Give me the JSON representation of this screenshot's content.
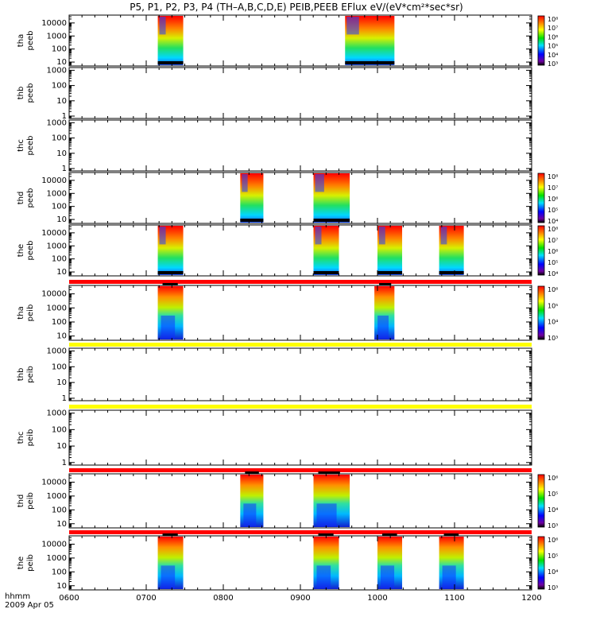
{
  "title": "P5, P1, P2, P3, P4 (TH–A,B,C,D,E) PEIB,PEEB EFlux eV/(eV*cm²*sec*sr)",
  "x_label_prefix": "hhmm",
  "date_label": "2009 Apr 05",
  "chart_data": {
    "type": "heatmap",
    "xlim": [
      "0600",
      "1200"
    ],
    "x_ticks": [
      "0600",
      "0700",
      "0800",
      "0900",
      "1000",
      "1100",
      "1200"
    ],
    "y_scale": "log",
    "colormap": "rainbow (purple-blue-cyan-green-yellow-red)",
    "panels": [
      {
        "probe": "tha",
        "product": "peeb",
        "y_ticks": [
          "10000",
          "1000",
          "100",
          "10"
        ],
        "ylim": [
          5,
          40000
        ],
        "spectrogram_blocks": [
          {
            "start": "0715",
            "end": "0748"
          },
          {
            "start": "0958",
            "end": "1022"
          }
        ],
        "colorbar": {
          "ticks": [
            "10⁸",
            "10⁷",
            "10⁶",
            "10⁵",
            "10⁴",
            "10³"
          ]
        },
        "quality_bar_above": null
      },
      {
        "probe": "thb",
        "product": "peeb",
        "y_ticks": [
          "1000",
          "100",
          "10",
          "1"
        ],
        "ylim": [
          0.7,
          1500
        ],
        "spectrogram_blocks": [],
        "colorbar": null,
        "quality_bar_above": null
      },
      {
        "probe": "thc",
        "product": "peeb",
        "y_ticks": [
          "1000",
          "100",
          "10",
          "1"
        ],
        "ylim": [
          0.7,
          1500
        ],
        "spectrogram_blocks": [],
        "colorbar": null,
        "quality_bar_above": null
      },
      {
        "probe": "thd",
        "product": "peeb",
        "y_ticks": [
          "10000",
          "1000",
          "100",
          "10"
        ],
        "ylim": [
          5,
          40000
        ],
        "spectrogram_blocks": [
          {
            "start": "0822",
            "end": "0852"
          },
          {
            "start": "0917",
            "end": "0964"
          }
        ],
        "colorbar": {
          "ticks": [
            "10⁸",
            "10⁷",
            "10⁶",
            "10⁵",
            "10⁴"
          ]
        },
        "quality_bar_above": null
      },
      {
        "probe": "the",
        "product": "peeb",
        "y_ticks": [
          "10000",
          "1000",
          "100",
          "10"
        ],
        "ylim": [
          5,
          40000
        ],
        "spectrogram_blocks": [
          {
            "start": "0715",
            "end": "0748"
          },
          {
            "start": "0917",
            "end": "0950"
          },
          {
            "start": "1000",
            "end": "1032"
          },
          {
            "start": "1080",
            "end": "1112"
          }
        ],
        "colorbar": {
          "ticks": [
            "10⁸",
            "10⁷",
            "10⁶",
            "10⁵",
            "10⁴"
          ]
        },
        "quality_bar_above": null
      },
      {
        "probe": "tha",
        "product": "peib",
        "y_ticks": [
          "10000",
          "1000",
          "100",
          "10"
        ],
        "ylim": [
          5,
          40000
        ],
        "spectrogram_blocks": [
          {
            "start": "0715",
            "end": "0748"
          },
          {
            "start": "0996",
            "end": "1022"
          }
        ],
        "colorbar": {
          "ticks": [
            "10⁶",
            "10⁵",
            "10⁴",
            "10³"
          ]
        },
        "quality_bar_above": "#ff0000"
      },
      {
        "probe": "thb",
        "product": "peib",
        "y_ticks": [
          "1000",
          "100",
          "10",
          "1"
        ],
        "ylim": [
          0.7,
          1500
        ],
        "spectrogram_blocks": [],
        "colorbar": null,
        "quality_bar_above": "#ffff00"
      },
      {
        "probe": "thc",
        "product": "peib",
        "y_ticks": [
          "1000",
          "100",
          "10",
          "1"
        ],
        "ylim": [
          0.7,
          1500
        ],
        "spectrogram_blocks": [],
        "colorbar": null,
        "quality_bar_above": "#ffff00"
      },
      {
        "probe": "thd",
        "product": "peib",
        "y_ticks": [
          "10000",
          "1000",
          "100",
          "10"
        ],
        "ylim": [
          5,
          40000
        ],
        "spectrogram_blocks": [
          {
            "start": "0822",
            "end": "0852"
          },
          {
            "start": "0917",
            "end": "0964"
          }
        ],
        "colorbar": {
          "ticks": [
            "10⁶",
            "10⁵",
            "10⁴",
            "10³"
          ]
        },
        "quality_bar_above": "#ff0000"
      },
      {
        "probe": "the",
        "product": "peib",
        "y_ticks": [
          "10000",
          "1000",
          "100",
          "10"
        ],
        "ylim": [
          5,
          40000
        ],
        "spectrogram_blocks": [
          {
            "start": "0715",
            "end": "0748"
          },
          {
            "start": "0917",
            "end": "0950"
          },
          {
            "start": "1000",
            "end": "1032"
          },
          {
            "start": "1080",
            "end": "1112"
          }
        ],
        "colorbar": {
          "ticks": [
            "10⁶",
            "10⁵",
            "10⁴",
            "10³"
          ]
        },
        "quality_bar_above": "#ff0000"
      }
    ]
  }
}
